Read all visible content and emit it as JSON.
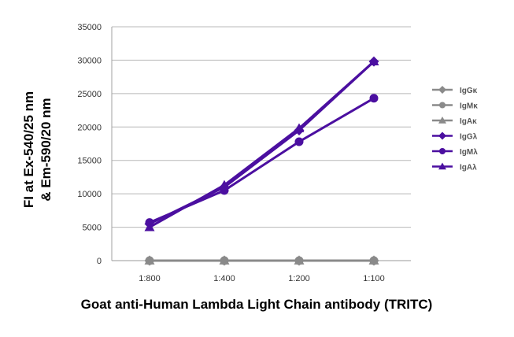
{
  "chart_data": {
    "type": "line",
    "title": "",
    "xlabel": "Goat anti-Human Lambda Light Chain antibody (TRITC)",
    "ylabel_lines": [
      "FI at Ex-540/25 nm",
      "& Em-590/20 nm"
    ],
    "categories": [
      "1:800",
      "1:400",
      "1:200",
      "1:100"
    ],
    "ylim": [
      0,
      35000
    ],
    "yticks": [
      0,
      5000,
      10000,
      15000,
      20000,
      25000,
      30000,
      35000
    ],
    "ytick_labels": [
      "0",
      "5000",
      "10000",
      "15000",
      "20000",
      "25000",
      "30000",
      "35000"
    ],
    "grid": true,
    "legend_position": "right",
    "series": [
      {
        "name": "IgGκ",
        "marker": "diamond",
        "color": "#8a8a8a",
        "values": [
          0,
          0,
          0,
          0
        ]
      },
      {
        "name": "IgMκ",
        "marker": "circle",
        "color": "#8a8a8a",
        "values": [
          0,
          0,
          0,
          0
        ]
      },
      {
        "name": "IgAκ",
        "marker": "triangle",
        "color": "#8a8a8a",
        "values": [
          0,
          0,
          0,
          0
        ]
      },
      {
        "name": "IgGλ",
        "marker": "diamond",
        "color": "#4b0fa0",
        "values": [
          5500,
          11000,
          19500,
          29800
        ]
      },
      {
        "name": "IgMλ",
        "marker": "circle",
        "color": "#4b0fa0",
        "values": [
          5700,
          10500,
          17800,
          24300
        ]
      },
      {
        "name": "IgAλ",
        "marker": "triangle",
        "color": "#4b0fa0",
        "values": [
          5000,
          11300,
          19800,
          29800
        ]
      }
    ]
  }
}
